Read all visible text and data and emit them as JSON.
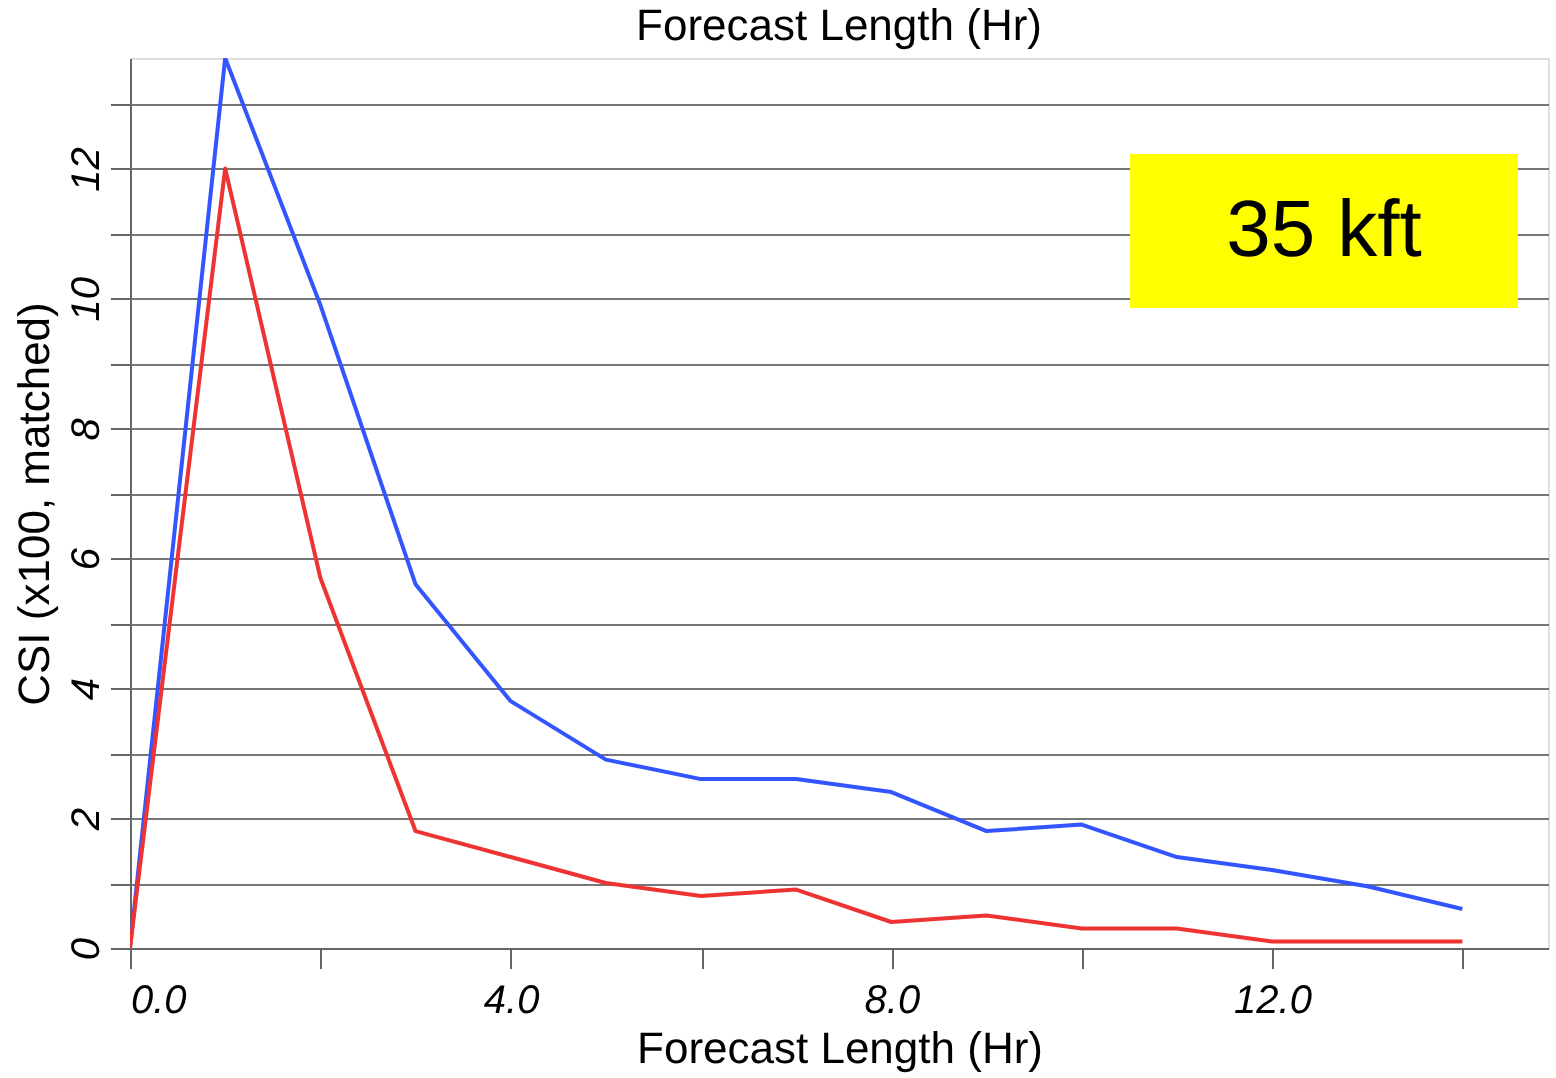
{
  "chart_data": {
    "type": "line",
    "title": "Forecast Length (Hr)",
    "xlabel": "Forecast Length (Hr)",
    "ylabel": "CSI (x100, matched)",
    "x": [
      0,
      1,
      2,
      3,
      4,
      5,
      6,
      7,
      8,
      9,
      10,
      11,
      12,
      13,
      14
    ],
    "series": [
      {
        "color": "#3355ff",
        "values": [
          0,
          13.7,
          9.9,
          5.6,
          3.8,
          2.9,
          2.6,
          2.6,
          2.4,
          1.8,
          1.9,
          1.4,
          1.2,
          0.95,
          0.6
        ]
      },
      {
        "color": "#ee3333",
        "values": [
          0,
          12.0,
          5.7,
          1.8,
          1.4,
          1.0,
          0.8,
          0.9,
          0.4,
          0.5,
          0.3,
          0.3,
          0.1,
          0.1,
          0.1
        ]
      }
    ],
    "xlim": [
      0,
      14.9
    ],
    "ylim": [
      0,
      13.7
    ],
    "xticks": [
      {
        "value": 0,
        "label": "0.0"
      },
      {
        "value": 2,
        "label": null
      },
      {
        "value": 4,
        "label": "4.0"
      },
      {
        "value": 6,
        "label": null
      },
      {
        "value": 8,
        "label": "8.0"
      },
      {
        "value": 10,
        "label": null
      },
      {
        "value": 12,
        "label": "12.0"
      },
      {
        "value": 14,
        "label": null
      }
    ],
    "yticks": [
      0,
      {
        "value": 1,
        "label": null
      },
      2,
      {
        "value": 3,
        "label": null
      },
      4,
      {
        "value": 5,
        "label": null
      },
      6,
      {
        "value": 7,
        "label": null
      },
      8,
      {
        "value": 9,
        "label": null
      },
      10,
      {
        "value": 11,
        "label": null
      },
      12,
      {
        "value": 13,
        "label": null
      }
    ],
    "grid": "y",
    "line_style": "solid",
    "marker": "none",
    "annotations": [
      "35 kft"
    ]
  }
}
